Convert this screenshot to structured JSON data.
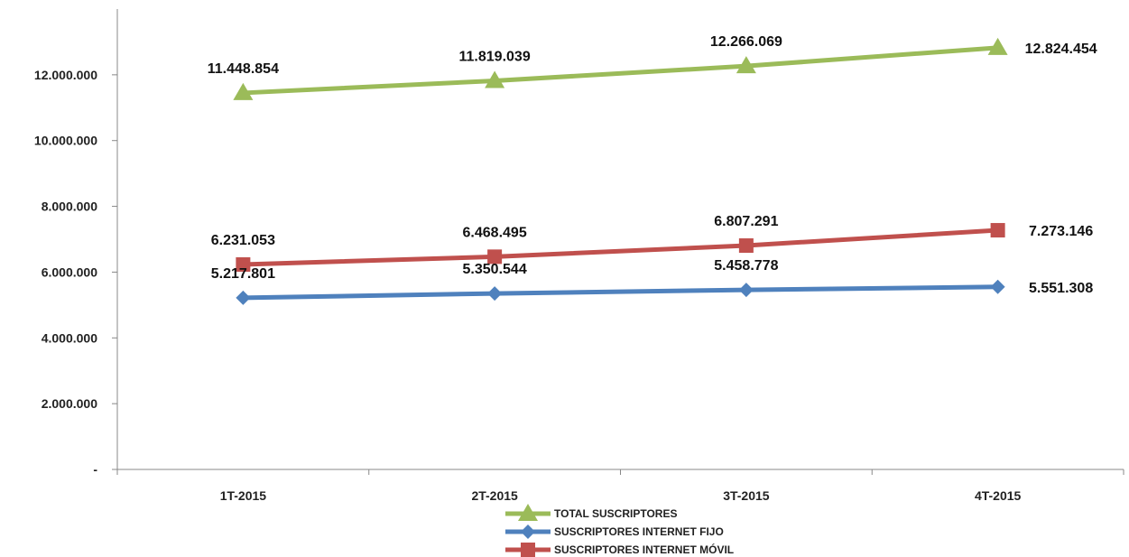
{
  "chart_data": {
    "type": "line",
    "categories": [
      "1T-2015",
      "2T-2015",
      "3T-2015",
      "4T-2015"
    ],
    "ylim": [
      0,
      14000000
    ],
    "yticks": [
      {
        "value": 0,
        "label": "-"
      },
      {
        "value": 2000000,
        "label": "2.000.000"
      },
      {
        "value": 4000000,
        "label": "4.000.000"
      },
      {
        "value": 6000000,
        "label": "6.000.000"
      },
      {
        "value": 8000000,
        "label": "8.000.000"
      },
      {
        "value": 10000000,
        "label": "10.000.000"
      },
      {
        "value": 12000000,
        "label": "12.000.000"
      }
    ],
    "grid": false,
    "legend_position": "bottom",
    "series": [
      {
        "name": "TOTAL SUSCRIPTORES",
        "color": "#9BBB59",
        "marker": "triangle",
        "values": [
          11448854,
          11819039,
          12266069,
          12824454
        ],
        "labels": [
          "11.448.854",
          "11.819.039",
          "12.266.069",
          "12.824.454"
        ]
      },
      {
        "name": "SUSCRIPTORES INTERNET FIJO",
        "color": "#4F81BD",
        "marker": "diamond",
        "values": [
          5217801,
          5350544,
          5458778,
          5551308
        ],
        "labels": [
          "5.217.801",
          "5.350.544",
          "5.458.778",
          "5.551.308"
        ]
      },
      {
        "name": "SUSCRIPTORES INTERNET MÓVIL",
        "color": "#C0504D",
        "marker": "square",
        "values": [
          6231053,
          6468495,
          6807291,
          7273146
        ],
        "labels": [
          "6.231.053",
          "6.468.495",
          "6.807.291",
          "7.273.146"
        ]
      }
    ]
  }
}
